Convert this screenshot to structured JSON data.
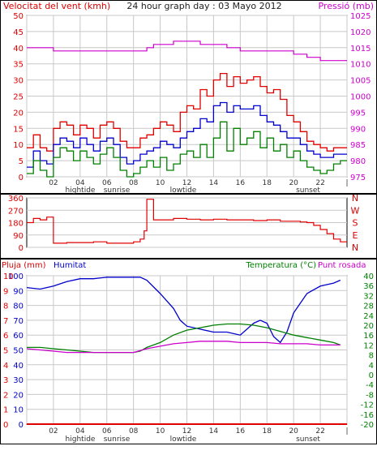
{
  "title": "24 hour graph day : 03 Mayo 2012",
  "colors": {
    "wind": "#e00000",
    "wind_avg": "#0000cc",
    "gust": "#008000",
    "pressure": "#cc00cc",
    "humidity": "#0000cc",
    "temperature": "#008000",
    "dewpoint": "#cc00cc",
    "rain": "#e00000",
    "grid": "#c8c8c8"
  },
  "hour_labels": [
    "02",
    "04",
    "06",
    "08",
    "10",
    "12",
    "14",
    "16",
    "18",
    "20",
    "22"
  ],
  "tide_labels": {
    "hightide": "hightide",
    "sunrise": "sunrise",
    "lowtide": "lowtide",
    "sunset": "sunset"
  },
  "chart_data": [
    {
      "type": "line",
      "name": "wind-pressure",
      "title": "24 hour graph day : 03 Mayo 2012",
      "ylabel_left": "Velocitat del vent (kmh)",
      "ylabel_right": "Pressió (mb)",
      "ylim_left": [
        0,
        50
      ],
      "ylim_right": [
        975,
        1025
      ],
      "yticks_left": [
        "0",
        "5",
        "10",
        "15",
        "20",
        "25",
        "30",
        "35",
        "40",
        "45",
        "50"
      ],
      "yticks_right": [
        "975",
        "980",
        "985",
        "990",
        "995",
        "1000",
        "1005",
        "1010",
        "1015",
        "1020",
        "1025"
      ],
      "xlim": [
        0,
        24
      ],
      "grid": true,
      "series": [
        {
          "key": "wind",
          "style": "step",
          "x": [
            0,
            0.5,
            1,
            1.5,
            2,
            2.5,
            3,
            3.5,
            4,
            4.5,
            5,
            5.5,
            6,
            6.5,
            7,
            7.5,
            8,
            8.5,
            9,
            9.5,
            10,
            10.5,
            11,
            11.5,
            12,
            12.5,
            13,
            13.5,
            14,
            14.5,
            15,
            15.5,
            16,
            16.5,
            17,
            17.5,
            18,
            18.5,
            19,
            19.5,
            20,
            20.5,
            21,
            21.5,
            22,
            22.5,
            23,
            23.5
          ],
          "values": [
            9,
            13,
            9,
            8,
            15,
            17,
            16,
            13,
            16,
            15,
            12,
            16,
            17,
            15,
            11,
            9,
            9,
            12,
            13,
            15,
            17,
            16,
            14,
            20,
            22,
            21,
            27,
            25,
            30,
            32,
            28,
            31,
            29,
            30,
            31,
            28,
            26,
            27,
            24,
            19,
            17,
            14,
            11,
            10,
            9,
            8,
            9,
            9
          ]
        },
        {
          "key": "wind_avg",
          "style": "step",
          "x": [
            0,
            0.5,
            1,
            1.5,
            2,
            2.5,
            3,
            3.5,
            4,
            4.5,
            5,
            5.5,
            6,
            6.5,
            7,
            7.5,
            8,
            8.5,
            9,
            9.5,
            10,
            10.5,
            11,
            11.5,
            12,
            12.5,
            13,
            13.5,
            14,
            14.5,
            15,
            15.5,
            16,
            16.5,
            17,
            17.5,
            18,
            18.5,
            19,
            19.5,
            20,
            20.5,
            21,
            21.5,
            22,
            22.5,
            23,
            23.5
          ],
          "values": [
            3,
            8,
            5,
            4,
            10,
            12,
            11,
            9,
            12,
            10,
            8,
            11,
            12,
            10,
            6,
            4,
            5,
            7,
            8,
            9,
            11,
            10,
            9,
            12,
            14,
            15,
            18,
            17,
            22,
            23,
            20,
            22,
            21,
            21,
            22,
            19,
            17,
            16,
            14,
            12,
            12,
            10,
            8,
            7,
            6,
            6,
            7,
            7
          ]
        },
        {
          "key": "gust",
          "style": "step",
          "x": [
            0,
            0.5,
            1,
            1.5,
            2,
            2.5,
            3,
            3.5,
            4,
            4.5,
            5,
            5.5,
            6,
            6.5,
            7,
            7.5,
            8,
            8.5,
            9,
            9.5,
            10,
            10.5,
            11,
            11.5,
            12,
            12.5,
            13,
            13.5,
            14,
            14.5,
            15,
            15.5,
            16,
            16.5,
            17,
            17.5,
            18,
            18.5,
            19,
            19.5,
            20,
            20.5,
            21,
            21.5,
            22,
            22.5,
            23,
            23.5
          ],
          "values": [
            1,
            5,
            2,
            0,
            6,
            9,
            8,
            5,
            8,
            6,
            4,
            7,
            9,
            6,
            2,
            0,
            1,
            3,
            5,
            3,
            6,
            2,
            4,
            7,
            8,
            6,
            10,
            6,
            12,
            17,
            8,
            15,
            10,
            12,
            14,
            9,
            12,
            8,
            10,
            6,
            8,
            5,
            3,
            2,
            1,
            2,
            4,
            5
          ]
        },
        {
          "key": "pressure",
          "axis": "right",
          "style": "step",
          "x": [
            0,
            1,
            2,
            3,
            4,
            5,
            6,
            7,
            8,
            9,
            9.5,
            10,
            10.5,
            11,
            12,
            13,
            14,
            15,
            16,
            17,
            18,
            19,
            20,
            21,
            22,
            23,
            23.5
          ],
          "values": [
            1015,
            1015,
            1014,
            1014,
            1014,
            1014,
            1014,
            1014,
            1014,
            1015,
            1016,
            1016,
            1016,
            1017,
            1017,
            1016,
            1016,
            1015,
            1014,
            1014,
            1014,
            1014,
            1013,
            1012,
            1011,
            1011,
            1011
          ]
        }
      ]
    },
    {
      "type": "line",
      "name": "wind-direction",
      "ylim": [
        0,
        360
      ],
      "yticks": [
        "0",
        "90",
        "180",
        "270",
        "360"
      ],
      "right_labels": [
        "N",
        "W",
        "S",
        "E",
        "N"
      ],
      "xlim": [
        0,
        24
      ],
      "series": [
        {
          "key": "wind",
          "style": "step",
          "x": [
            0,
            0.5,
            1,
            1.5,
            2,
            3,
            4,
            5,
            6,
            7,
            8,
            8.5,
            8.8,
            9,
            9.5,
            10,
            11,
            12,
            13,
            14,
            15,
            16,
            17,
            18,
            19,
            20,
            20.5,
            21,
            21.5,
            22,
            22.5,
            23,
            23.5
          ],
          "values": [
            180,
            210,
            200,
            220,
            30,
            35,
            35,
            40,
            30,
            30,
            40,
            60,
            120,
            350,
            200,
            200,
            210,
            205,
            200,
            205,
            200,
            200,
            195,
            200,
            190,
            190,
            185,
            180,
            160,
            130,
            100,
            60,
            40
          ]
        }
      ]
    },
    {
      "type": "line",
      "name": "humidity-temperature",
      "ylabel_left_rain": "Pluja (mm)",
      "ylabel_left_humidity": "Humitat",
      "ylabel_right": "Temperatura (°C)",
      "ylabel_right_dew": "Punt rosada",
      "yticks_rain": [
        "0",
        "1",
        "2",
        "3",
        "4",
        "5",
        "6",
        "7",
        "8",
        "9",
        "10"
      ],
      "yticks_humidity": [
        "0",
        "10",
        "20",
        "30",
        "40",
        "50",
        "60",
        "70",
        "80",
        "90",
        "100"
      ],
      "yticks_temperature": [
        "-20",
        "-16",
        "-12",
        "-8",
        "-4",
        "0",
        "4",
        "8",
        "12",
        "16",
        "20",
        "24",
        "28",
        "32",
        "36",
        "40"
      ],
      "ylim_humidity": [
        0,
        100
      ],
      "ylim_rain": [
        0,
        10
      ],
      "ylim_temperature": [
        -20,
        40
      ],
      "xlim": [
        0,
        24
      ],
      "grid": true,
      "series": [
        {
          "key": "humidity",
          "axis": "humidity",
          "x": [
            0,
            1,
            2,
            3,
            4,
            5,
            6,
            7,
            8,
            8.5,
            9,
            10,
            11,
            11.5,
            12,
            13,
            14,
            15,
            16,
            16.5,
            17,
            17.5,
            18,
            18.5,
            19,
            19.5,
            20,
            21,
            22,
            23,
            23.5
          ],
          "values": [
            92,
            91,
            93,
            96,
            98,
            98,
            99,
            99,
            99,
            99,
            97,
            88,
            78,
            70,
            66,
            64,
            62,
            62,
            60,
            64,
            68,
            70,
            68,
            59,
            55,
            62,
            75,
            88,
            93,
            95,
            97
          ]
        },
        {
          "key": "temperature",
          "axis": "temperature",
          "x": [
            0,
            1,
            2,
            3,
            4,
            5,
            6,
            7,
            8,
            8.5,
            9,
            10,
            11,
            12,
            13,
            14,
            15,
            16,
            17,
            18,
            19,
            20,
            21,
            22,
            23,
            23.5
          ],
          "values": [
            11,
            11,
            10.5,
            10,
            9.5,
            9,
            9,
            9,
            9,
            9.5,
            11,
            13,
            16,
            18,
            19,
            20,
            20.5,
            20.5,
            20,
            19,
            17.5,
            16,
            15,
            14,
            13,
            12
          ]
        },
        {
          "key": "dewpoint",
          "axis": "temperature",
          "x": [
            0,
            1,
            2,
            3,
            4,
            5,
            6,
            7,
            8,
            9,
            10,
            11,
            12,
            13,
            14,
            15,
            16,
            17,
            18,
            19,
            20,
            21,
            22,
            23,
            23.5
          ],
          "values": [
            10.5,
            10,
            9.5,
            9,
            9,
            9,
            9,
            9,
            9,
            10.5,
            11.5,
            12.5,
            13,
            13.5,
            13.5,
            13.5,
            13,
            13,
            13,
            12.5,
            12.5,
            12.5,
            12,
            12,
            12
          ]
        },
        {
          "key": "rain",
          "axis": "rain",
          "x": [
            0,
            24
          ],
          "values": [
            0,
            0
          ]
        }
      ]
    }
  ]
}
